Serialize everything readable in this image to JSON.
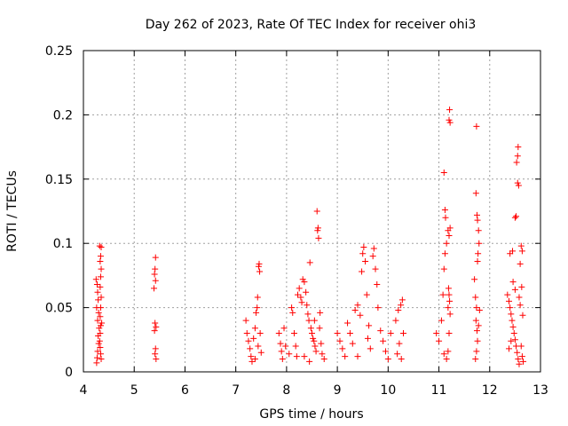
{
  "chart_data": {
    "type": "scatter",
    "title": "Day 262 of 2023, Rate Of TEC Index for receiver ohi3",
    "xlabel": "GPS time / hours",
    "ylabel": "ROTI / TECUs",
    "xlim": [
      4,
      13
    ],
    "ylim": [
      0,
      0.25
    ],
    "x_ticks": [
      4,
      5,
      6,
      7,
      8,
      9,
      10,
      11,
      12,
      13
    ],
    "x_tick_labels": [
      "4",
      "5",
      "6",
      "7",
      "8",
      "9",
      "10",
      "11",
      "12",
      "13"
    ],
    "y_ticks": [
      0,
      0.05,
      0.1,
      0.15,
      0.2,
      0.25
    ],
    "y_tick_labels": [
      "0",
      "0.05",
      "0.1",
      "0.15",
      "0.2",
      "0.25"
    ],
    "grid": true,
    "marker": "+",
    "color": "#ff0000",
    "series": [
      {
        "name": "ROTI",
        "points": [
          [
            4.25,
            0.072
          ],
          [
            4.27,
            0.068
          ],
          [
            4.28,
            0.062
          ],
          [
            4.29,
            0.056
          ],
          [
            4.26,
            0.05
          ],
          [
            4.3,
            0.046
          ],
          [
            4.28,
            0.04
          ],
          [
            4.31,
            0.034
          ],
          [
            4.29,
            0.028
          ],
          [
            4.3,
            0.022
          ],
          [
            4.28,
            0.016
          ],
          [
            4.27,
            0.011
          ],
          [
            4.26,
            0.007
          ],
          [
            4.32,
            0.024
          ],
          [
            4.33,
            0.03
          ],
          [
            4.34,
            0.036
          ],
          [
            4.32,
            0.098
          ],
          [
            4.35,
            0.097
          ],
          [
            4.34,
            0.09
          ],
          [
            4.33,
            0.086
          ],
          [
            4.35,
            0.08
          ],
          [
            4.34,
            0.074
          ],
          [
            4.33,
            0.066
          ],
          [
            4.35,
            0.058
          ],
          [
            4.34,
            0.05
          ],
          [
            4.33,
            0.043
          ],
          [
            4.36,
            0.038
          ],
          [
            4.34,
            0.014
          ],
          [
            4.35,
            0.01
          ],
          [
            4.33,
            0.019
          ],
          [
            5.42,
            0.089
          ],
          [
            5.41,
            0.08
          ],
          [
            5.4,
            0.076
          ],
          [
            5.42,
            0.071
          ],
          [
            5.39,
            0.065
          ],
          [
            5.41,
            0.038
          ],
          [
            5.43,
            0.035
          ],
          [
            5.4,
            0.032
          ],
          [
            5.42,
            0.018
          ],
          [
            5.41,
            0.014
          ],
          [
            5.43,
            0.01
          ],
          [
            7.2,
            0.04
          ],
          [
            7.22,
            0.03
          ],
          [
            7.25,
            0.024
          ],
          [
            7.28,
            0.018
          ],
          [
            7.3,
            0.012
          ],
          [
            7.32,
            0.008
          ],
          [
            7.35,
            0.026
          ],
          [
            7.38,
            0.034
          ],
          [
            7.4,
            0.046
          ],
          [
            7.42,
            0.05
          ],
          [
            7.43,
            0.058
          ],
          [
            7.45,
            0.082
          ],
          [
            7.46,
            0.084
          ],
          [
            7.47,
            0.078
          ],
          [
            7.44,
            0.02
          ],
          [
            7.48,
            0.03
          ],
          [
            7.5,
            0.015
          ],
          [
            7.38,
            0.01
          ],
          [
            7.85,
            0.03
          ],
          [
            7.88,
            0.022
          ],
          [
            7.9,
            0.016
          ],
          [
            7.92,
            0.01
          ],
          [
            7.95,
            0.034
          ],
          [
            7.98,
            0.02
          ],
          [
            8.05,
            0.014
          ],
          [
            8.1,
            0.05
          ],
          [
            8.12,
            0.046
          ],
          [
            8.15,
            0.03
          ],
          [
            8.18,
            0.02
          ],
          [
            8.2,
            0.012
          ],
          [
            8.22,
            0.06
          ],
          [
            8.25,
            0.065
          ],
          [
            8.28,
            0.058
          ],
          [
            8.3,
            0.054
          ],
          [
            8.32,
            0.072
          ],
          [
            8.35,
            0.07
          ],
          [
            8.38,
            0.062
          ],
          [
            8.4,
            0.052
          ],
          [
            8.42,
            0.045
          ],
          [
            8.44,
            0.04
          ],
          [
            8.46,
            0.085
          ],
          [
            8.48,
            0.034
          ],
          [
            8.5,
            0.03
          ],
          [
            8.52,
            0.026
          ],
          [
            8.54,
            0.024
          ],
          [
            8.56,
            0.02
          ],
          [
            8.58,
            0.016
          ],
          [
            8.6,
            0.125
          ],
          [
            8.62,
            0.112
          ],
          [
            8.61,
            0.11
          ],
          [
            8.63,
            0.104
          ],
          [
            8.65,
            0.034
          ],
          [
            8.68,
            0.022
          ],
          [
            8.7,
            0.014
          ],
          [
            8.74,
            0.01
          ],
          [
            8.45,
            0.008
          ],
          [
            8.35,
            0.012
          ],
          [
            8.55,
            0.04
          ],
          [
            8.66,
            0.046
          ],
          [
            9.0,
            0.03
          ],
          [
            9.05,
            0.024
          ],
          [
            9.1,
            0.018
          ],
          [
            9.15,
            0.012
          ],
          [
            9.2,
            0.038
          ],
          [
            9.25,
            0.03
          ],
          [
            9.3,
            0.022
          ],
          [
            9.35,
            0.048
          ],
          [
            9.4,
            0.052
          ],
          [
            9.45,
            0.044
          ],
          [
            9.48,
            0.078
          ],
          [
            9.5,
            0.092
          ],
          [
            9.52,
            0.097
          ],
          [
            9.55,
            0.086
          ],
          [
            9.58,
            0.06
          ],
          [
            9.6,
            0.026
          ],
          [
            9.65,
            0.018
          ],
          [
            9.7,
            0.09
          ],
          [
            9.72,
            0.096
          ],
          [
            9.75,
            0.08
          ],
          [
            9.78,
            0.068
          ],
          [
            9.8,
            0.05
          ],
          [
            9.85,
            0.032
          ],
          [
            9.9,
            0.024
          ],
          [
            9.95,
            0.016
          ],
          [
            10.0,
            0.01
          ],
          [
            10.05,
            0.03
          ],
          [
            9.62,
            0.036
          ],
          [
            9.4,
            0.012
          ],
          [
            10.15,
            0.04
          ],
          [
            10.2,
            0.048
          ],
          [
            10.25,
            0.052
          ],
          [
            10.28,
            0.056
          ],
          [
            10.3,
            0.03
          ],
          [
            10.22,
            0.022
          ],
          [
            10.18,
            0.014
          ],
          [
            10.26,
            0.01
          ],
          [
            10.95,
            0.03
          ],
          [
            11.0,
            0.024
          ],
          [
            11.05,
            0.04
          ],
          [
            11.08,
            0.06
          ],
          [
            11.1,
            0.08
          ],
          [
            11.12,
            0.092
          ],
          [
            11.15,
            0.1
          ],
          [
            11.13,
            0.12
          ],
          [
            11.12,
            0.126
          ],
          [
            11.1,
            0.155
          ],
          [
            11.18,
            0.11
          ],
          [
            11.2,
            0.106
          ],
          [
            11.22,
            0.112
          ],
          [
            11.19,
            0.065
          ],
          [
            11.2,
            0.06
          ],
          [
            11.21,
            0.055
          ],
          [
            11.18,
            0.05
          ],
          [
            11.22,
            0.045
          ],
          [
            11.2,
            0.196
          ],
          [
            11.22,
            0.194
          ],
          [
            11.21,
            0.204
          ],
          [
            11.2,
            0.03
          ],
          [
            11.18,
            0.016
          ],
          [
            11.15,
            0.01
          ],
          [
            11.1,
            0.014
          ],
          [
            11.7,
            0.072
          ],
          [
            11.72,
            0.058
          ],
          [
            11.74,
            0.05
          ],
          [
            11.73,
            0.04
          ],
          [
            11.75,
            0.032
          ],
          [
            11.76,
            0.024
          ],
          [
            11.74,
            0.016
          ],
          [
            11.72,
            0.01
          ],
          [
            11.73,
            0.139
          ],
          [
            11.74,
            0.191
          ],
          [
            11.75,
            0.122
          ],
          [
            11.76,
            0.118
          ],
          [
            11.78,
            0.11
          ],
          [
            11.79,
            0.1
          ],
          [
            11.77,
            0.092
          ],
          [
            11.76,
            0.086
          ],
          [
            11.8,
            0.048
          ],
          [
            11.78,
            0.036
          ],
          [
            12.35,
            0.06
          ],
          [
            12.38,
            0.055
          ],
          [
            12.4,
            0.05
          ],
          [
            12.42,
            0.045
          ],
          [
            12.44,
            0.04
          ],
          [
            12.46,
            0.035
          ],
          [
            12.48,
            0.03
          ],
          [
            12.5,
            0.025
          ],
          [
            12.52,
            0.02
          ],
          [
            12.54,
            0.015
          ],
          [
            12.56,
            0.01
          ],
          [
            12.58,
            0.006
          ],
          [
            12.4,
            0.092
          ],
          [
            12.45,
            0.094
          ],
          [
            12.5,
            0.12
          ],
          [
            12.52,
            0.121
          ],
          [
            12.55,
            0.147
          ],
          [
            12.57,
            0.145
          ],
          [
            12.53,
            0.163
          ],
          [
            12.55,
            0.168
          ],
          [
            12.56,
            0.175
          ],
          [
            12.58,
            0.058
          ],
          [
            12.6,
            0.052
          ],
          [
            12.62,
            0.098
          ],
          [
            12.64,
            0.094
          ],
          [
            12.6,
            0.084
          ],
          [
            12.63,
            0.066
          ],
          [
            12.65,
            0.044
          ],
          [
            12.62,
            0.02
          ],
          [
            12.64,
            0.012
          ],
          [
            12.66,
            0.008
          ],
          [
            12.38,
            0.018
          ],
          [
            12.42,
            0.024
          ],
          [
            12.46,
            0.07
          ],
          [
            12.5,
            0.064
          ]
        ]
      }
    ]
  }
}
